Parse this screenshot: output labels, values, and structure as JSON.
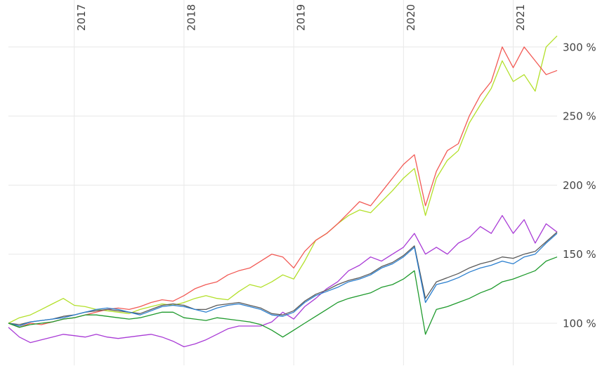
{
  "chart_data": {
    "type": "line",
    "x": [
      2016.4,
      2016.5,
      2016.6,
      2016.7,
      2016.8,
      2016.9,
      2017.0,
      2017.1,
      2017.2,
      2017.3,
      2017.4,
      2017.5,
      2017.6,
      2017.7,
      2017.8,
      2017.9,
      2018.0,
      2018.1,
      2018.2,
      2018.3,
      2018.4,
      2018.5,
      2018.6,
      2018.7,
      2018.8,
      2018.9,
      2019.0,
      2019.1,
      2019.2,
      2019.3,
      2019.4,
      2019.5,
      2019.6,
      2019.7,
      2019.8,
      2019.9,
      2020.0,
      2020.1,
      2020.2,
      2020.3,
      2020.4,
      2020.5,
      2020.6,
      2020.7,
      2020.8,
      2020.9,
      2021.0,
      2021.1,
      2021.2,
      2021.3,
      2021.4
    ],
    "series": [
      {
        "color": "#b3e02a",
        "values": [
          100,
          104,
          106,
          110,
          114,
          118,
          113,
          112,
          110,
          109,
          108,
          107,
          110,
          112,
          114,
          113,
          115,
          118,
          120,
          118,
          117,
          123,
          128,
          126,
          130,
          135,
          132,
          145,
          160,
          165,
          172,
          178,
          182,
          180,
          188,
          196,
          205,
          212,
          178,
          205,
          218,
          225,
          245,
          258,
          270,
          290,
          275,
          280,
          268,
          300,
          308
        ]
      },
      {
        "color": "#f25a55",
        "values": [
          100,
          97,
          100,
          99,
          101,
          103,
          104,
          106,
          108,
          110,
          111,
          110,
          112,
          115,
          117,
          116,
          120,
          125,
          128,
          130,
          135,
          138,
          140,
          145,
          150,
          148,
          140,
          152,
          160,
          165,
          172,
          180,
          188,
          185,
          195,
          205,
          215,
          222,
          185,
          210,
          225,
          230,
          250,
          265,
          275,
          300,
          285,
          300,
          290,
          280,
          283
        ]
      },
      {
        "color": "#a93bd6",
        "values": [
          97,
          90,
          86,
          88,
          90,
          92,
          91,
          90,
          92,
          90,
          89,
          90,
          91,
          92,
          90,
          87,
          83,
          85,
          88,
          92,
          96,
          98,
          98,
          98,
          101,
          108,
          103,
          112,
          118,
          125,
          130,
          138,
          142,
          148,
          145,
          150,
          155,
          165,
          150,
          155,
          150,
          158,
          162,
          170,
          165,
          178,
          165,
          175,
          158,
          172,
          166
        ]
      },
      {
        "color": "#5a5a5a",
        "values": [
          100,
          99,
          101,
          102,
          103,
          105,
          106,
          108,
          109,
          110,
          109,
          108,
          107,
          110,
          113,
          114,
          113,
          110,
          110,
          113,
          114,
          115,
          113,
          111,
          107,
          106,
          109,
          116,
          121,
          124,
          128,
          131,
          133,
          136,
          141,
          144,
          149,
          156,
          118,
          130,
          133,
          136,
          140,
          143,
          145,
          148,
          147,
          150,
          152,
          159,
          166
        ]
      },
      {
        "color": "#2b7fcf",
        "values": [
          100,
          98,
          101,
          102,
          103,
          104,
          106,
          108,
          110,
          111,
          110,
          108,
          106,
          109,
          112,
          113,
          112,
          110,
          108,
          111,
          113,
          114,
          112,
          110,
          106,
          105,
          108,
          115,
          120,
          123,
          126,
          130,
          132,
          135,
          140,
          143,
          148,
          155,
          115,
          128,
          130,
          133,
          137,
          140,
          142,
          145,
          143,
          148,
          150,
          158,
          165
        ]
      },
      {
        "color": "#1e9a2c",
        "values": [
          100,
          97,
          99,
          100,
          101,
          103,
          104,
          106,
          106,
          105,
          104,
          103,
          104,
          106,
          108,
          108,
          104,
          103,
          102,
          104,
          103,
          102,
          101,
          99,
          95,
          90,
          95,
          100,
          105,
          110,
          115,
          118,
          120,
          122,
          126,
          128,
          132,
          138,
          92,
          110,
          112,
          115,
          118,
          122,
          125,
          130,
          132,
          135,
          138,
          145,
          148
        ]
      }
    ],
    "xlim": [
      2016.4,
      2021.4
    ],
    "xticks": [
      2017,
      2018,
      2019,
      2020,
      2021
    ],
    "ylim": [
      69.5,
      334
    ],
    "yticks": [
      {
        "value": 100,
        "label": "100 %"
      },
      {
        "value": 150,
        "label": "150 %"
      },
      {
        "value": 200,
        "label": "200 %"
      },
      {
        "value": 250,
        "label": "250 %"
      },
      {
        "value": 300,
        "label": "300 %"
      }
    ],
    "grid": true
  }
}
